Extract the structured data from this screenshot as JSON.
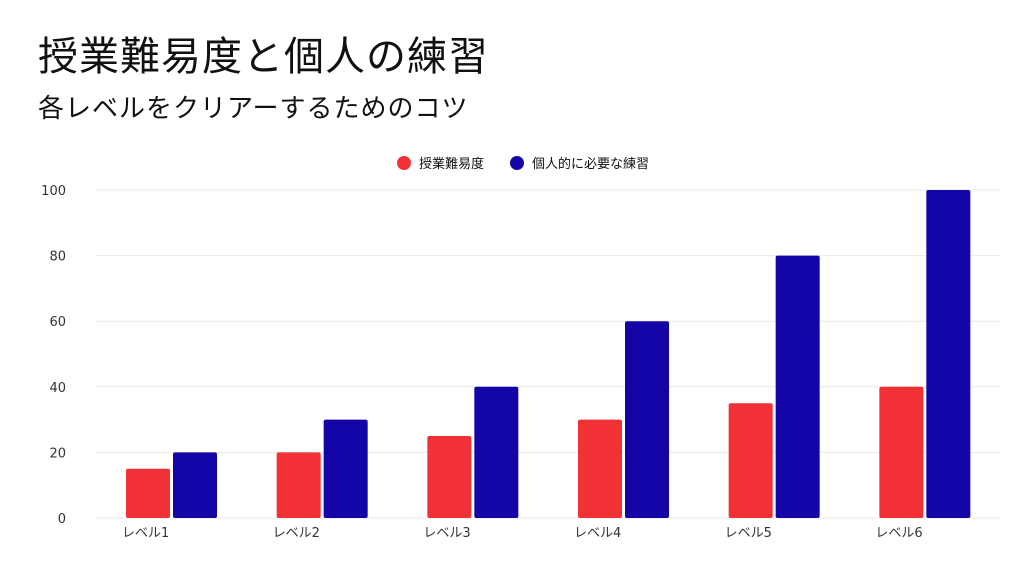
{
  "header": {
    "title": "授業難易度と個人の練習",
    "subtitle": "各レベルをクリアーするためのコツ"
  },
  "colors": {
    "series_1": "#f23136",
    "series_2": "#1405a6",
    "grid": "#e8e8e8",
    "axis_text": "#333333"
  },
  "chart_data": {
    "type": "bar",
    "categories": [
      "レベル1",
      "レベル2",
      "レベル3",
      "レベル4",
      "レベル5",
      "レベル6"
    ],
    "series": [
      {
        "name": "授業難易度",
        "values": [
          15,
          20,
          25,
          30,
          35,
          40
        ]
      },
      {
        "name": "個人的に必要な練習",
        "values": [
          20,
          30,
          40,
          60,
          80,
          100
        ]
      }
    ],
    "ylim": [
      0,
      100
    ],
    "yticks": [
      0,
      20,
      40,
      60,
      80,
      100
    ],
    "grid": true,
    "legend_position": "top-center"
  }
}
